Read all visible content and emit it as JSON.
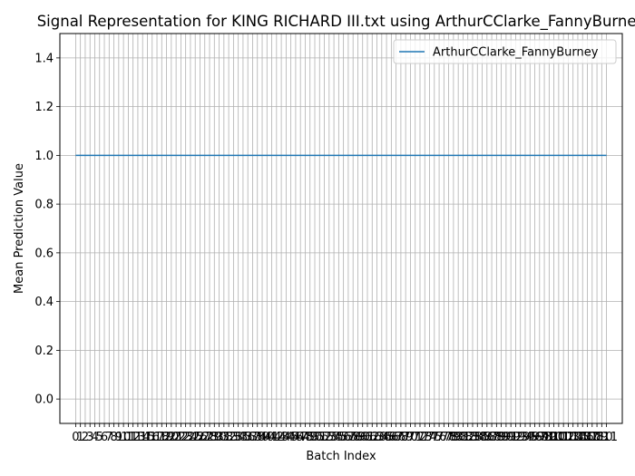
{
  "chart_data": {
    "type": "line",
    "title": "Signal Representation for KING RICHARD III.txt using ArthurCClarke_FannyBurney",
    "xlabel": "Batch Index",
    "ylabel": "Mean Prediction Value",
    "ylim": [
      -0.1,
      1.5
    ],
    "xlim": [
      -3.3,
      114.3
    ],
    "grid": true,
    "legend_position": "top-right",
    "colors": {
      "series": "#1f77b4",
      "grid": "#b0b0b0",
      "axes": "#000000"
    },
    "y_ticks": [
      "0.0",
      "0.2",
      "0.4",
      "0.6",
      "0.8",
      "1.0",
      "1.2",
      "1.4"
    ],
    "x_ticks": [
      "0",
      "1",
      "2",
      "3",
      "4",
      "5",
      "6",
      "7",
      "8",
      "9",
      "10",
      "11",
      "12",
      "13",
      "14",
      "15",
      "16",
      "17",
      "18",
      "19",
      "20",
      "21",
      "22",
      "23",
      "24",
      "25",
      "26",
      "27",
      "28",
      "29",
      "30",
      "31",
      "32",
      "33",
      "34",
      "35",
      "36",
      "37",
      "38",
      "39",
      "40",
      "41",
      "42",
      "43",
      "44",
      "45",
      "46",
      "47",
      "48",
      "49",
      "50",
      "51",
      "52",
      "53",
      "54",
      "55",
      "56",
      "57",
      "58",
      "59",
      "60",
      "61",
      "62",
      "63",
      "64",
      "65",
      "66",
      "67",
      "68",
      "69",
      "70",
      "71",
      "72",
      "73",
      "74",
      "75",
      "76",
      "77",
      "78",
      "79",
      "80",
      "81",
      "82",
      "83",
      "84",
      "85",
      "86",
      "87",
      "88",
      "89",
      "90",
      "91",
      "92",
      "93",
      "94",
      "95",
      "96",
      "97",
      "98",
      "99",
      "100",
      "101",
      "102",
      "103",
      "104",
      "105",
      "106",
      "107",
      "108",
      "109",
      "110",
      "111"
    ],
    "series": [
      {
        "name": "ArthurCClarke_FannyBurney",
        "x_start": 0,
        "x_end": 111,
        "y": 1.0
      }
    ]
  }
}
